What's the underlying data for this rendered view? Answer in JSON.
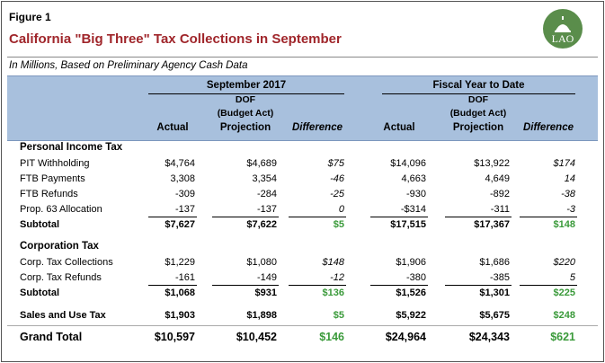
{
  "header": {
    "figure": "Figure 1",
    "title": "California \"Big Three\" Tax Collections in September",
    "logo": "LAO",
    "subtitle": "In Millions, Based on Preliminary Agency Cash Data"
  },
  "columns": {
    "groups": [
      "September 2017",
      "Fiscal Year to Date"
    ],
    "heads": [
      [
        "Actual"
      ],
      [
        "DOF",
        "(Budget Act)",
        "Projection"
      ],
      [
        "Difference"
      ],
      [
        "Actual"
      ],
      [
        "DOF",
        "(Budget Act)",
        "Projection"
      ],
      [
        "Difference"
      ]
    ]
  },
  "sections": [
    {
      "title": "Personal Income Tax",
      "rows": [
        [
          "PIT Withholding",
          "$4,764",
          "$4,689",
          "$75",
          "$14,096",
          "$13,922",
          "$174"
        ],
        [
          "FTB Payments",
          "3,308",
          "3,354",
          "-46",
          "4,663",
          "4,649",
          "14"
        ],
        [
          "FTB Refunds",
          "-309",
          "-284",
          "-25",
          "-930",
          "-892",
          "-38"
        ],
        [
          "Prop. 63 Allocation",
          "-137",
          "-137",
          "0",
          "-$314",
          "-311",
          "-3"
        ]
      ],
      "subtotal": [
        "Subtotal",
        "$7,627",
        "$7,622",
        "$5",
        "$17,515",
        "$17,367",
        "$148"
      ]
    },
    {
      "title": "Corporation Tax",
      "rows": [
        [
          "Corp. Tax Collections",
          "$1,229",
          "$1,080",
          "$148",
          "$1,906",
          "$1,686",
          "$220"
        ],
        [
          "Corp. Tax Refunds",
          "-161",
          "-149",
          "-12",
          "-380",
          "-385",
          "5"
        ]
      ],
      "subtotal": [
        "Subtotal",
        "$1,068",
        "$931",
        "$136",
        "$1,526",
        "$1,301",
        "$225"
      ]
    }
  ],
  "sales": [
    "Sales and Use Tax",
    "$1,903",
    "$1,898",
    "$5",
    "$5,922",
    "$5,675",
    "$248"
  ],
  "total": [
    "Grand Total",
    "$10,597",
    "$10,452",
    "$146",
    "$24,964",
    "$24,343",
    "$621"
  ]
}
